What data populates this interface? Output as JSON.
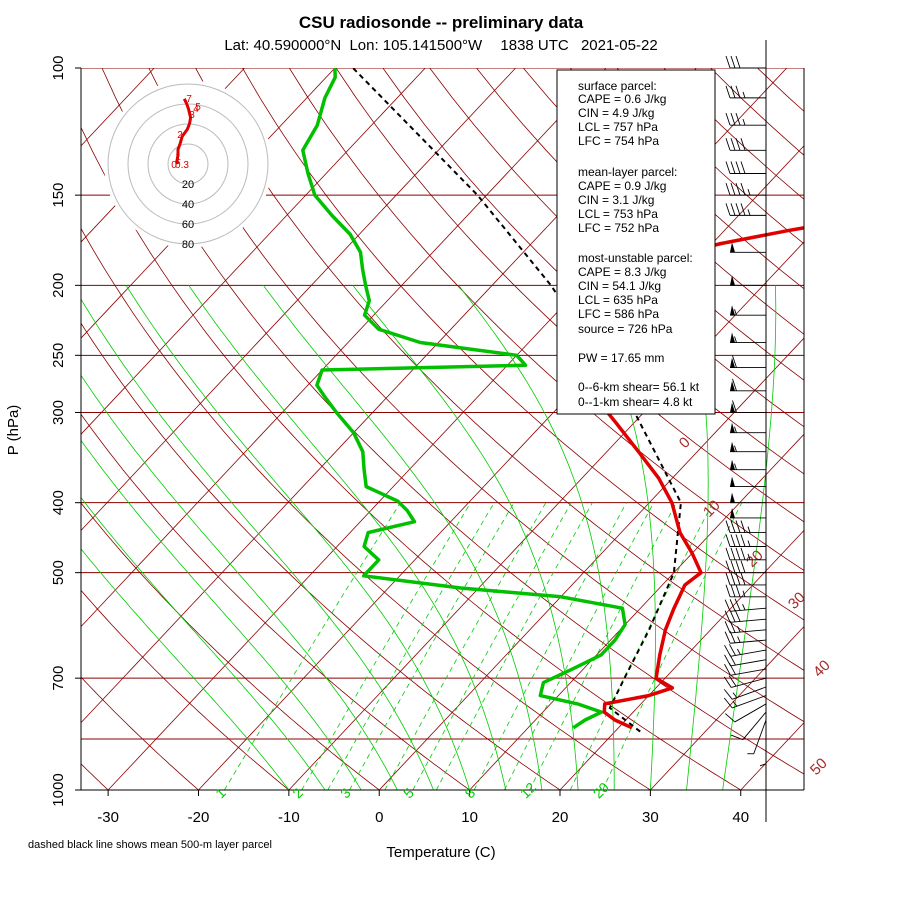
{
  "chart_data": {
    "type": "skew-t",
    "title": "CSU radiosonde -- preliminary data",
    "subtitle_parts": {
      "lat": "Lat: 40.590000°N",
      "lon": "Lon: 105.141500°W",
      "time": "1838 UTC",
      "date": "2021-05-22"
    },
    "xlabel": "Temperature (C)",
    "ylabel": "P (hPa)",
    "note": "dashed black line shows mean 500-m layer parcel",
    "x_ticks": [
      "-30",
      "-20",
      "-10",
      "0",
      "10",
      "20",
      "30",
      "40"
    ],
    "y_ticks": [
      "100",
      "150",
      "200",
      "250",
      "300",
      "400",
      "500",
      "700",
      "1000"
    ],
    "pressure_levels": [
      100,
      150,
      200,
      250,
      300,
      400,
      500,
      700,
      850,
      1000
    ],
    "temp_range": [
      -33,
      47
    ],
    "pressure_range": [
      1000,
      100
    ],
    "isotherm_labels": [
      "0",
      "10",
      "20",
      "30",
      "40",
      "50"
    ],
    "mixing_ratio_labels": [
      "1",
      "2",
      "3",
      "5",
      "8",
      "12",
      "20"
    ],
    "temperature_profile": [
      [
        820,
        21.5
      ],
      [
        800,
        18.8
      ],
      [
        780,
        16.8
      ],
      [
        760,
        16.0
      ],
      [
        740,
        20.0
      ],
      [
        722,
        21.8
      ],
      [
        700,
        19.0
      ],
      [
        650,
        17.0
      ],
      [
        600,
        15.0
      ],
      [
        560,
        13.7
      ],
      [
        520,
        12.5
      ],
      [
        500,
        13.0
      ],
      [
        470,
        10.0
      ],
      [
        440,
        6.5
      ],
      [
        400,
        2.5
      ],
      [
        370,
        -1.5
      ],
      [
        340,
        -6.5
      ],
      [
        310,
        -12.0
      ],
      [
        300,
        -14.0
      ],
      [
        280,
        -17.5
      ],
      [
        260,
        -21.0
      ],
      [
        245,
        -23.0
      ],
      [
        230,
        -25.5
      ],
      [
        215,
        -28.5
      ],
      [
        205,
        -28.5
      ],
      [
        195,
        -26.0
      ],
      [
        183,
        -24.0
      ],
      [
        175,
        -19.0
      ],
      [
        168,
        -13.0
      ],
      [
        163,
        -8.0
      ],
      [
        157,
        -6.5
      ],
      [
        150,
        -8.5
      ],
      [
        140,
        -12.0
      ],
      [
        133,
        -17.0
      ],
      [
        125,
        -19.0
      ],
      [
        112,
        -21.0
      ],
      [
        103,
        -24.0
      ],
      [
        100,
        -25.5
      ]
    ],
    "dewpoint_profile": [
      [
        820,
        15.0
      ],
      [
        800,
        15.5
      ],
      [
        780,
        16.5
      ],
      [
        760,
        13.0
      ],
      [
        740,
        8.0
      ],
      [
        710,
        7.0
      ],
      [
        680,
        8.8
      ],
      [
        650,
        10.5
      ],
      [
        620,
        10.5
      ],
      [
        590,
        10.0
      ],
      [
        560,
        8.0
      ],
      [
        540,
        0.0
      ],
      [
        525,
        -12.0
      ],
      [
        505,
        -24.0
      ],
      [
        480,
        -24.0
      ],
      [
        460,
        -27.0
      ],
      [
        440,
        -28.0
      ],
      [
        425,
        -24.0
      ],
      [
        410,
        -26.0
      ],
      [
        398,
        -28.0
      ],
      [
        380,
        -33.0
      ],
      [
        360,
        -35.0
      ],
      [
        340,
        -37.0
      ],
      [
        320,
        -40.0
      ],
      [
        300,
        -44.0
      ],
      [
        285,
        -47.0
      ],
      [
        275,
        -49.0
      ],
      [
        262,
        -50.0
      ],
      [
        258,
        -28.0
      ],
      [
        250,
        -30.0
      ],
      [
        240,
        -42.0
      ],
      [
        230,
        -48.0
      ],
      [
        220,
        -51.0
      ],
      [
        210,
        -52.0
      ],
      [
        200,
        -54.0
      ],
      [
        190,
        -56.0
      ],
      [
        180,
        -58.0
      ],
      [
        170,
        -61.0
      ],
      [
        160,
        -65.0
      ],
      [
        150,
        -69.0
      ],
      [
        140,
        -72.0
      ],
      [
        130,
        -75.0
      ],
      [
        120,
        -76.0
      ],
      [
        110,
        -78.0
      ],
      [
        103,
        -79.0
      ],
      [
        100,
        -80.0
      ]
    ],
    "parcel_profile": [
      [
        830,
        22.8
      ],
      [
        770,
        17.0
      ],
      [
        700,
        15.5
      ],
      [
        600,
        13.2
      ],
      [
        500,
        10.0
      ],
      [
        400,
        3.5
      ],
      [
        300,
        -11.0
      ],
      [
        250,
        -21.0
      ],
      [
        200,
        -33.5
      ],
      [
        150,
        -51.0
      ],
      [
        100,
        -78.0
      ]
    ],
    "stats": {
      "surface_header": "surface parcel:",
      "surface": [
        "CAPE = 0.6 J/kg",
        "CIN = 4.9 J/kg",
        "LCL = 757 hPa",
        "LFC = 754 hPa"
      ],
      "mixed_header": "mean-layer parcel:",
      "mixed": [
        "CAPE = 0.9 J/kg",
        "CIN = 3.1 J/kg",
        "LCL = 753 hPa",
        "LFC = 752 hPa"
      ],
      "mu_header": "most-unstable parcel:",
      "mu": [
        "CAPE = 8.3 J/kg",
        "CIN = 54.1 J/kg",
        "LCL = 635 hPa",
        "LFC = 586 hPa",
        "source = 726 hPa"
      ],
      "pw": "PW =  17.65 mm",
      "shear6": "0--6-km shear= 56.1 kt",
      "shear1": "0--1-km shear= 4.8 kt"
    },
    "hodograph": {
      "ring_labels": [
        "20",
        "40",
        "60",
        "80"
      ],
      "ring_values": [
        20,
        40,
        60,
        80
      ],
      "point_labels": [
        "7",
        "5",
        "4",
        "3",
        "2",
        "1",
        "0",
        "0.3"
      ],
      "trace": [
        [
          0,
          0
        ],
        [
          -1,
          2
        ],
        [
          0,
          6
        ],
        [
          0,
          10
        ],
        [
          2,
          14
        ],
        [
          4,
          19
        ],
        [
          9,
          24
        ],
        [
          11,
          28
        ],
        [
          12,
          32
        ],
        [
          10,
          38
        ],
        [
          8,
          42
        ],
        [
          6,
          45
        ]
      ]
    },
    "wind_barbs": {
      "pressures": [
        820,
        800,
        780,
        760,
        740,
        720,
        700,
        680,
        660,
        640,
        620,
        600,
        580,
        560,
        540,
        520,
        500,
        480,
        460,
        440,
        420,
        400,
        380,
        360,
        340,
        320,
        300,
        280,
        260,
        240,
        220,
        200,
        180,
        160,
        150,
        140,
        130,
        120,
        110,
        100
      ],
      "speed_kt": [
        5,
        5,
        10,
        10,
        15,
        15,
        20,
        20,
        20,
        25,
        25,
        25,
        30,
        35,
        35,
        40,
        40,
        45,
        45,
        45,
        50,
        50,
        50,
        55,
        55,
        55,
        60,
        60,
        60,
        55,
        55,
        50,
        50,
        45,
        45,
        40,
        40,
        35,
        35,
        30
      ],
      "direction_deg": [
        180,
        200,
        220,
        240,
        250,
        250,
        255,
        260,
        260,
        260,
        265,
        265,
        265,
        265,
        270,
        270,
        270,
        270,
        270,
        270,
        270,
        270,
        270,
        270,
        270,
        270,
        270,
        270,
        270,
        270,
        270,
        270,
        270,
        270,
        270,
        270,
        270,
        270,
        270,
        270
      ]
    }
  }
}
